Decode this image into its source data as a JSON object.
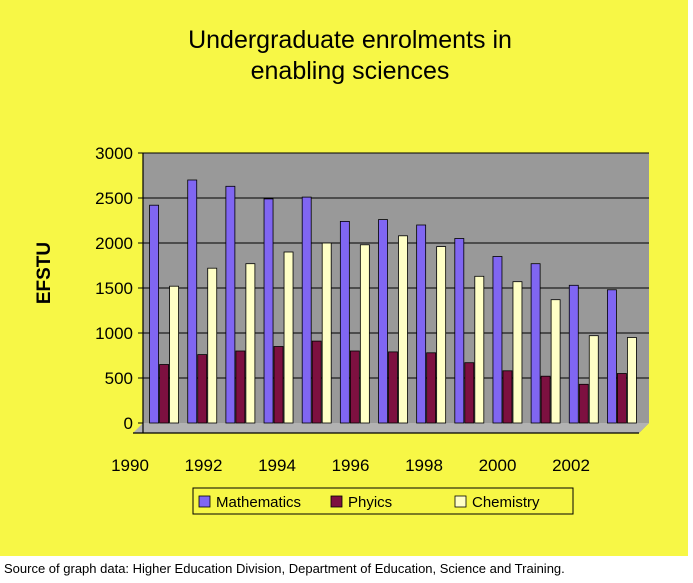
{
  "chart_data": {
    "type": "bar",
    "title_lines": [
      "Undergraduate enrolments in",
      "enabling sciences"
    ],
    "ylabel": "EFSTU",
    "xlabel": "",
    "ylim": [
      0,
      3000
    ],
    "yticks": [
      0,
      500,
      1000,
      1500,
      2000,
      2500,
      3000
    ],
    "categories": [
      "1990",
      "1991",
      "1992",
      "1993",
      "1994",
      "1995",
      "1996",
      "1997",
      "1998",
      "1999",
      "2000",
      "2001",
      "2002"
    ],
    "xtick_labels": [
      "1990",
      "1992",
      "1994",
      "1996",
      "1998",
      "2000",
      "2002"
    ],
    "series": [
      {
        "name": "Mathematics",
        "color": "#8066f2",
        "values": [
          2420,
          2700,
          2630,
          2490,
          2510,
          2240,
          2260,
          2200,
          2050,
          1850,
          1770,
          1530,
          1480
        ]
      },
      {
        "name": "Phyics",
        "color": "#7d1040",
        "values": [
          650,
          760,
          800,
          850,
          910,
          800,
          790,
          780,
          670,
          580,
          520,
          430,
          550
        ]
      },
      {
        "name": "Chemistry",
        "color": "#ffffc6",
        "values": [
          1520,
          1720,
          1770,
          1900,
          2000,
          1980,
          2080,
          1960,
          1630,
          1570,
          1370,
          970,
          950
        ]
      }
    ],
    "grid": true,
    "legend_position": "bottom",
    "plot_background": "#999999",
    "chart_background": "#f7f746"
  },
  "source_note": "Source of graph data:  Higher Education Division, Department of Education, Science and Training."
}
